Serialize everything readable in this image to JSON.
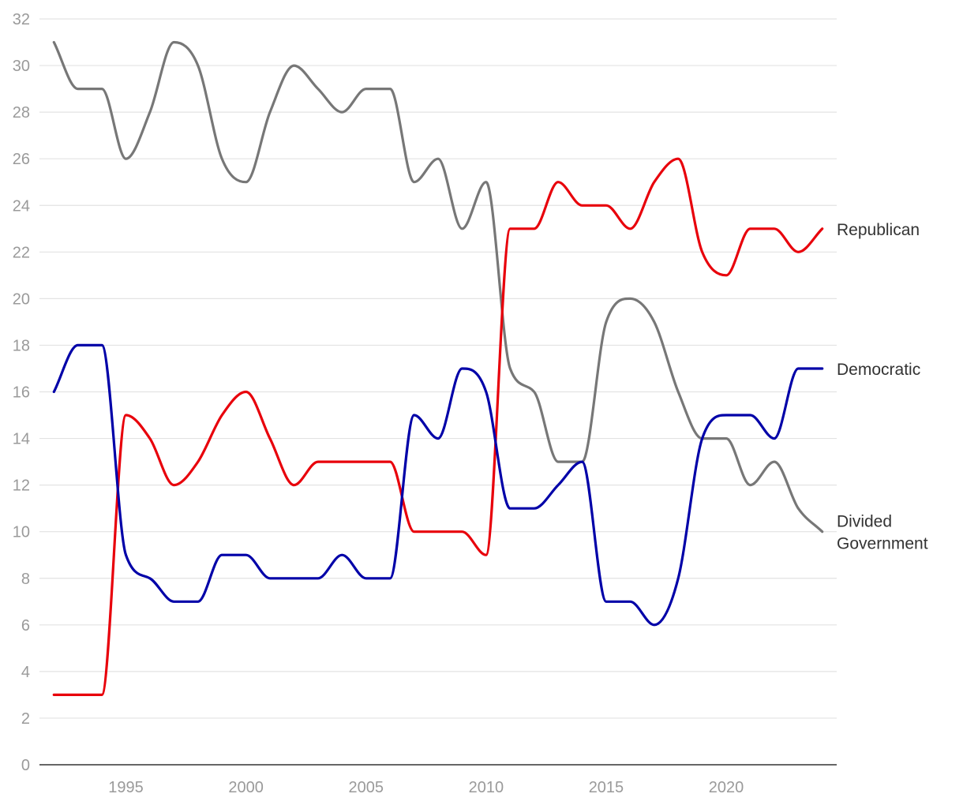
{
  "chart_data": {
    "type": "line",
    "title": "",
    "xlabel": "",
    "ylabel": "",
    "x": [
      1992,
      1993,
      1994,
      1995,
      1996,
      1997,
      1998,
      1999,
      2000,
      2001,
      2002,
      2003,
      2004,
      2005,
      2006,
      2007,
      2008,
      2009,
      2010,
      2011,
      2012,
      2013,
      2014,
      2015,
      2016,
      2017,
      2018,
      2019,
      2020,
      2021,
      2022,
      2023,
      2024
    ],
    "xlim": [
      1991.4,
      2024.6
    ],
    "ylim": [
      0,
      32
    ],
    "x_ticks": [
      1995,
      2000,
      2005,
      2010,
      2015,
      2020
    ],
    "y_ticks": [
      0,
      2,
      4,
      6,
      8,
      10,
      12,
      14,
      16,
      18,
      20,
      22,
      24,
      26,
      28,
      30,
      32
    ],
    "grid": "horizontal",
    "legend": "labels at line ends, right",
    "series": [
      {
        "name": "Divided Government",
        "label_lines": [
          "Divided",
          "Government"
        ],
        "color": "#777777",
        "values": [
          31,
          29,
          29,
          26,
          28,
          31,
          30,
          26,
          25,
          28,
          30,
          29,
          28,
          29,
          29,
          25,
          26,
          23,
          25,
          17,
          16,
          13,
          13,
          19,
          20,
          19,
          16,
          14,
          14,
          12,
          13,
          11,
          10
        ]
      },
      {
        "name": "Republican",
        "label_lines": [
          "Republican"
        ],
        "color": "#e8000b",
        "values": [
          3,
          3,
          3,
          15,
          14,
          12,
          13,
          15,
          16,
          14,
          12,
          13,
          13,
          13,
          13,
          10,
          10,
          10,
          9,
          23,
          23,
          25,
          24,
          24,
          23,
          25,
          26,
          22,
          21,
          23,
          23,
          22,
          23
        ]
      },
      {
        "name": "Democratic",
        "label_lines": [
          "Democratic"
        ],
        "color": "#0000a8",
        "values": [
          16,
          18,
          18,
          9,
          8,
          7,
          7,
          9,
          9,
          8,
          8,
          8,
          9,
          8,
          8,
          15,
          14,
          17,
          16,
          11,
          11,
          12,
          13,
          7,
          7,
          6,
          8,
          14,
          15,
          15,
          14,
          17,
          17
        ]
      }
    ]
  }
}
